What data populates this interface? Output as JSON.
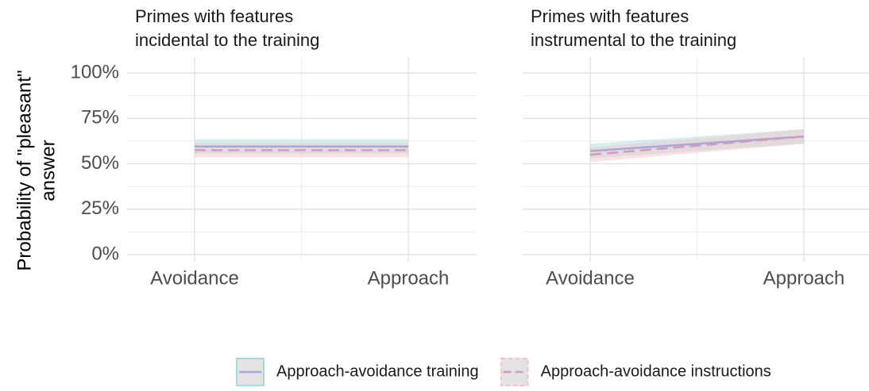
{
  "chart_data": {
    "type": "line",
    "y_label": [
      "Probability of \"pleasant\"",
      "answer"
    ],
    "categories": [
      "Avoidance",
      "Approach"
    ],
    "ylim": [
      0,
      100
    ],
    "yticks": [
      {
        "value": 0,
        "label": "0%"
      },
      {
        "value": 25,
        "label": "25%"
      },
      {
        "value": 50,
        "label": "50%"
      },
      {
        "value": 75,
        "label": "75%"
      },
      {
        "value": 100,
        "label": "100%"
      }
    ],
    "grid": true,
    "legend": "bottom",
    "series": [
      {
        "name": "Approach-avoidance training",
        "color": "#a9a6d9",
        "band_color": "#9fdcdc",
        "dash": false
      },
      {
        "name": "Approach-avoidance instructions",
        "color": "#cf9cc0",
        "band_color": "#f6c2c6",
        "dash": true
      }
    ],
    "panels": [
      {
        "title": [
          "Primes with features",
          "incidental to the training"
        ],
        "values": [
          [
            59.5,
            59.5
          ],
          [
            57.5,
            57.5
          ]
        ],
        "lower": [
          [
            55.5,
            55.5
          ],
          [
            53.5,
            53.5
          ]
        ],
        "upper": [
          [
            63.5,
            63.5
          ],
          [
            61.5,
            61.5
          ]
        ]
      },
      {
        "title": [
          "Primes with features",
          "instrumental to the training"
        ],
        "values": [
          [
            57,
            65
          ],
          [
            55,
            65
          ]
        ],
        "lower": [
          [
            53,
            61
          ],
          [
            51,
            61
          ]
        ],
        "upper": [
          [
            61,
            69
          ],
          [
            59,
            69
          ]
        ]
      }
    ]
  }
}
